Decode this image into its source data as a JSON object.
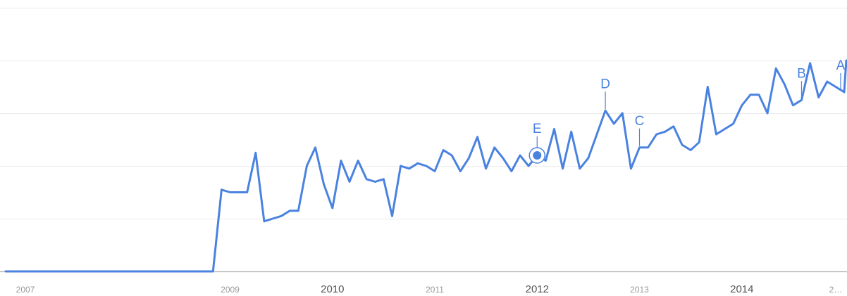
{
  "chart_data": {
    "type": "line",
    "title": "",
    "xlabel": "",
    "ylabel": "",
    "colors": {
      "series": "#4a82e0",
      "grid": "#ececec",
      "baseline": "#b0b0b0"
    },
    "grid": true,
    "xlim": [
      "2007-01",
      "2015-02"
    ],
    "ylim": [
      0,
      100
    ],
    "x_ticks": [
      {
        "label": "2007",
        "date": "2007-01",
        "emphasis": false
      },
      {
        "label": "2009",
        "date": "2009-01",
        "emphasis": false
      },
      {
        "label": "2010",
        "date": "2010-01",
        "emphasis": true
      },
      {
        "label": "2011",
        "date": "2011-01",
        "emphasis": false
      },
      {
        "label": "2012",
        "date": "2012-01",
        "emphasis": true
      },
      {
        "label": "2013",
        "date": "2013-01",
        "emphasis": false
      },
      {
        "label": "2014",
        "date": "2014-01",
        "emphasis": true
      },
      {
        "label": "2…",
        "date": "2015-01",
        "emphasis": false
      }
    ],
    "series": [
      {
        "dates": [
          "2007-01",
          "2008-11",
          "2008-12",
          "2009-01",
          "2009-02",
          "2009-03",
          "2009-04",
          "2009-05",
          "2009-06",
          "2009-07",
          "2009-08",
          "2009-09",
          "2009-10",
          "2009-11",
          "2009-12",
          "2010-01",
          "2010-02",
          "2010-03",
          "2010-04",
          "2010-05",
          "2010-06",
          "2010-07",
          "2010-08",
          "2010-09",
          "2010-10",
          "2010-11",
          "2010-12",
          "2011-01",
          "2011-02",
          "2011-03",
          "2011-04",
          "2011-05",
          "2011-06",
          "2011-07",
          "2011-08",
          "2011-09",
          "2011-10",
          "2011-11",
          "2011-12",
          "2012-01",
          "2012-02",
          "2012-03",
          "2012-04",
          "2012-05",
          "2012-06",
          "2012-07",
          "2012-08",
          "2012-09",
          "2012-10",
          "2012-11",
          "2012-12",
          "2013-01",
          "2013-02",
          "2013-03",
          "2013-04",
          "2013-05",
          "2013-06",
          "2013-07",
          "2013-08",
          "2013-09",
          "2013-10",
          "2013-11",
          "2013-12",
          "2014-01",
          "2014-02",
          "2014-03",
          "2014-04",
          "2014-05",
          "2014-06",
          "2014-07",
          "2014-08",
          "2014-09",
          "2014-10",
          "2014-11",
          "2014-12",
          "2015-01",
          "2015-02"
        ],
        "values": [
          0,
          0,
          31,
          30,
          30,
          30,
          45,
          19,
          20,
          21,
          23,
          23,
          40,
          47,
          33,
          24,
          42,
          34,
          42,
          35,
          34,
          35,
          21,
          40,
          39,
          41,
          40,
          38,
          46,
          44,
          38,
          43,
          51,
          39,
          47,
          43,
          38,
          44,
          40,
          44,
          42,
          54,
          39,
          53,
          39,
          43,
          52,
          61,
          56,
          60,
          39,
          47,
          47,
          52,
          53,
          55,
          48,
          46,
          49,
          70,
          52,
          54,
          56,
          63,
          67,
          67,
          60,
          77,
          71,
          63,
          65,
          79,
          66,
          72,
          70,
          68,
          80
        ],
        "annotations": [
          {
            "label": "E",
            "date": "2012-01"
          },
          {
            "label": "D",
            "date": "2012-09"
          },
          {
            "label": "C",
            "date": "2013-01"
          },
          {
            "label": "B",
            "date": "2014-08"
          },
          {
            "label": "A",
            "date": "2015-01"
          }
        ]
      }
    ]
  }
}
